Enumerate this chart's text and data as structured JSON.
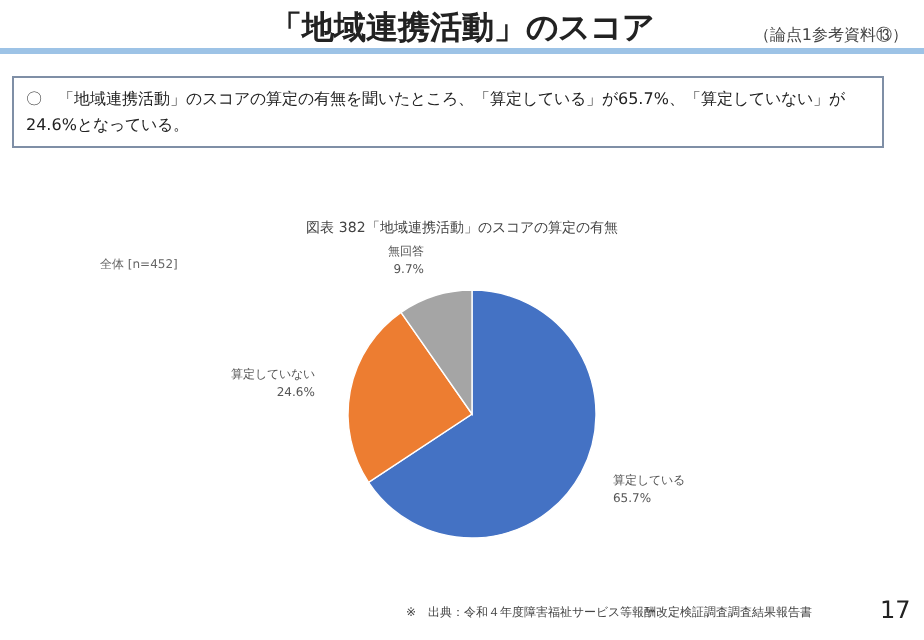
{
  "chart_data": {
    "type": "pie",
    "title": "図表 382「地域連携活動」のスコアの算定の有無",
    "categories": [
      "算定している",
      "算定していない",
      "無回答"
    ],
    "values": [
      65.7,
      24.6,
      9.7
    ],
    "value_labels": [
      "65.7%",
      "24.6%",
      "9.7%"
    ],
    "colors": [
      "#4472c4",
      "#ed7d31",
      "#a5a5a5"
    ],
    "annotations": [
      "「地域連携活動」のスコア",
      "（論点1参考資料⑬）",
      "〇　「地域連携活動」のスコアの算定の有無を聞いたところ、「算定している」が65.7%、「算定していない」が24.6%となっている。",
      "全体 [n=452]",
      "※　出典：令和４年度障害福祉サービス等報酬改定検証調査調査結果報告書",
      "17"
    ]
  }
}
